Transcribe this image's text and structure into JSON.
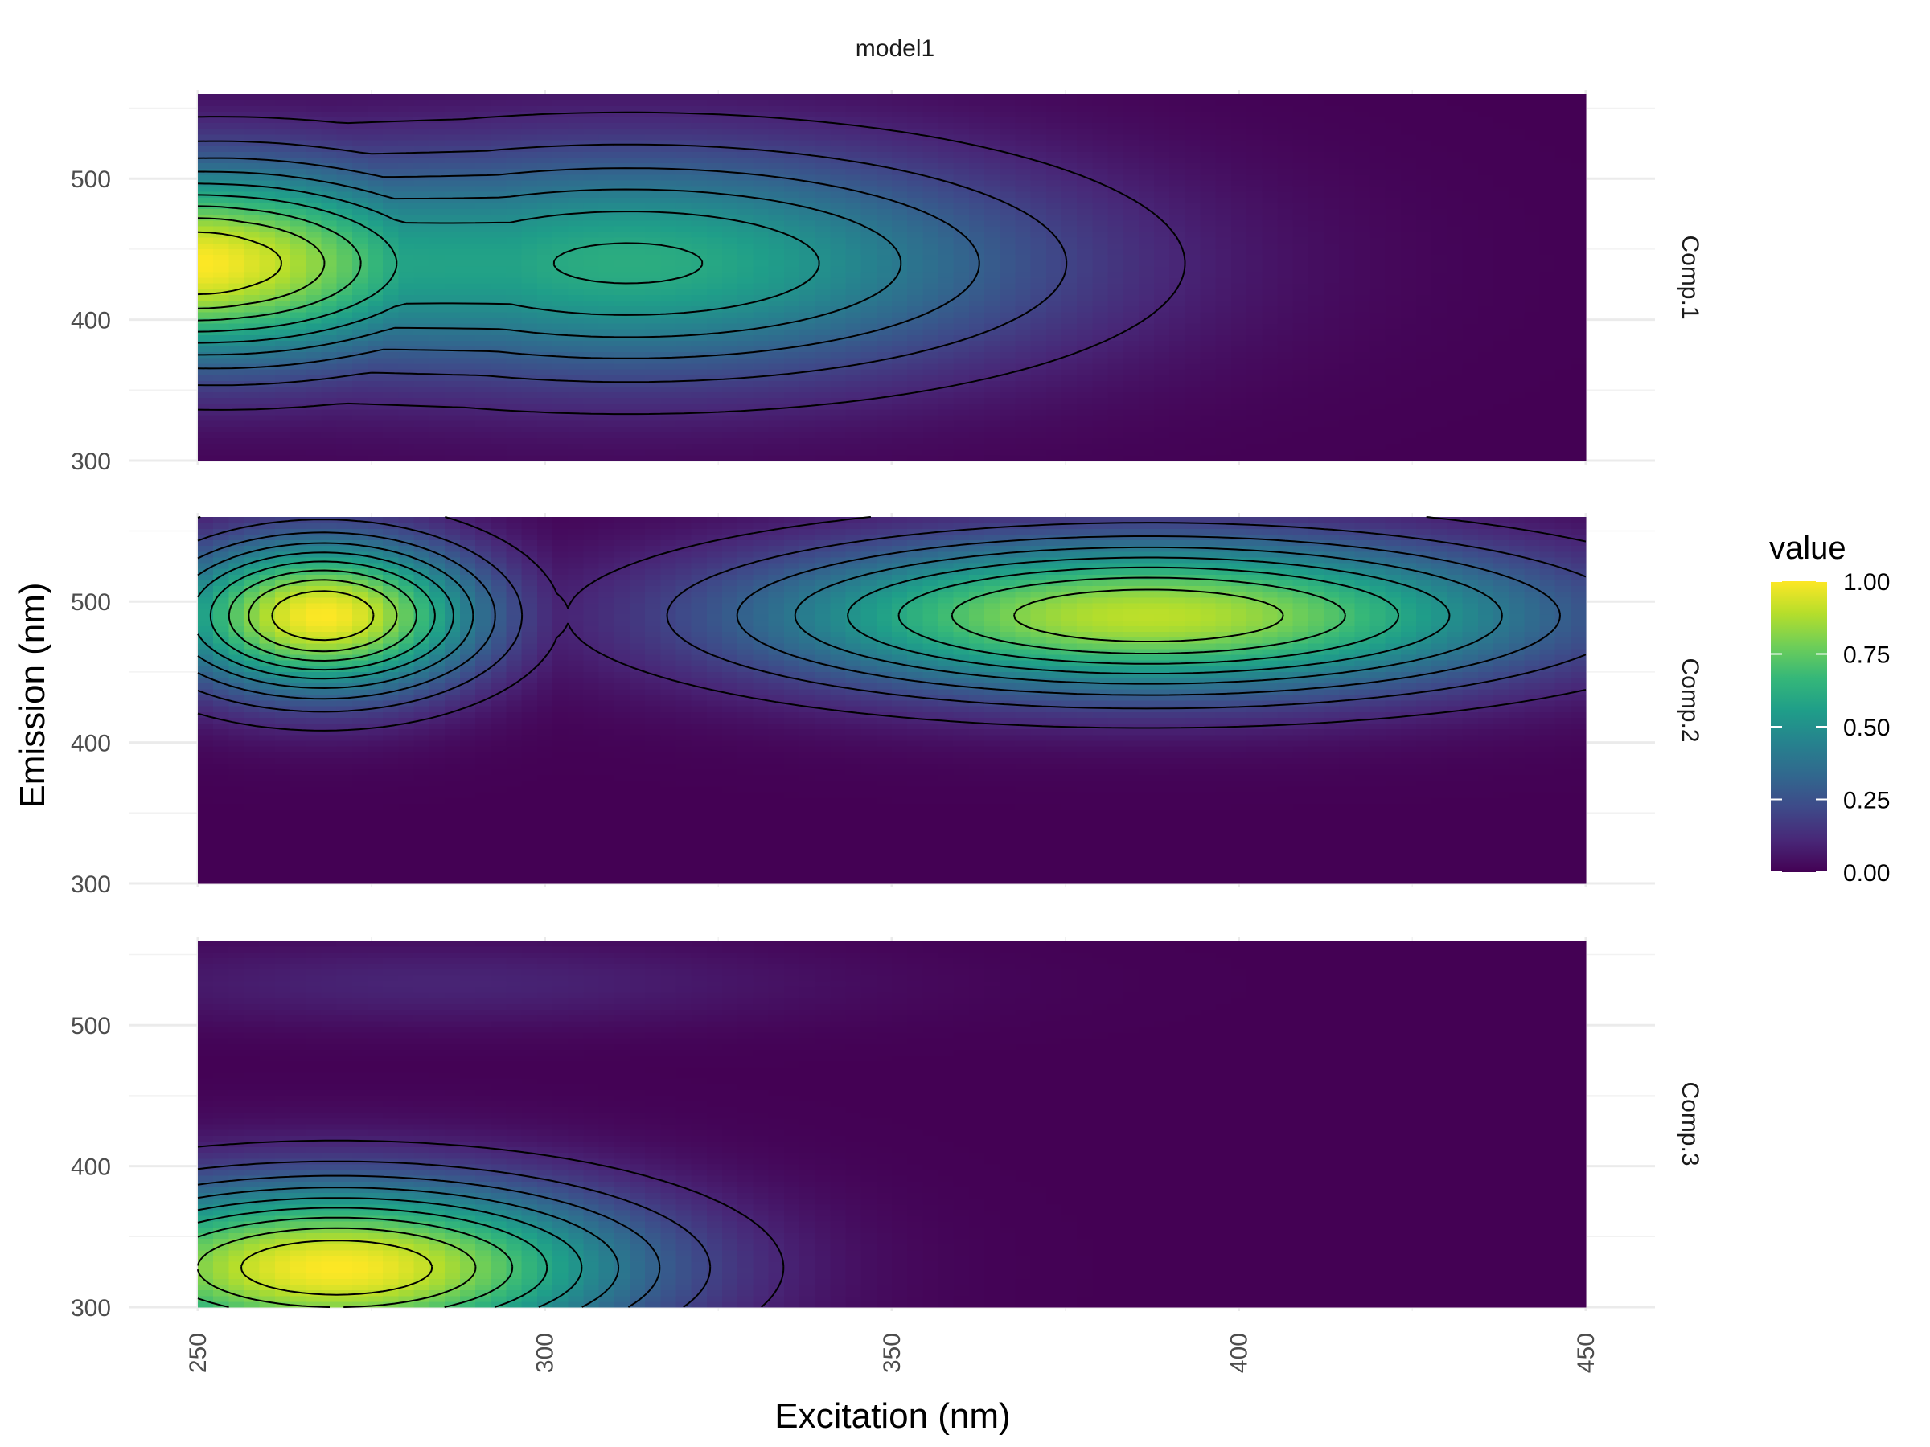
{
  "chart_data": {
    "type": "heatmap",
    "title": "model1",
    "xlabel": "Excitation (nm)",
    "ylabel": "Emission (nm)",
    "xlim": [
      250,
      450
    ],
    "ylim": [
      300,
      560
    ],
    "x_ticks": [
      "250",
      "300",
      "350",
      "400",
      "450"
    ],
    "y_ticks": [
      "300",
      "400",
      "500"
    ],
    "grid": true,
    "contours": true,
    "contour_levels": [
      0.1,
      0.2,
      0.3,
      0.4,
      0.5,
      0.6,
      0.7,
      0.8,
      0.9
    ],
    "facets": [
      {
        "label": "Comp.1",
        "peaks": [
          {
            "ex": 250,
            "em": 440,
            "value": 1.0
          },
          {
            "ex": 312,
            "em": 440,
            "value": 0.62
          }
        ]
      },
      {
        "label": "Comp.2",
        "peaks": [
          {
            "ex": 268,
            "em": 490,
            "value": 1.0
          },
          {
            "ex": 387,
            "em": 490,
            "value": 0.9
          }
        ]
      },
      {
        "label": "Comp.3",
        "peaks": [
          {
            "ex": 270,
            "em": 328,
            "value": 1.0
          },
          {
            "ex": 285,
            "em": 530,
            "value": 0.1
          }
        ]
      }
    ],
    "legend": {
      "title": "value",
      "position": "right",
      "ticks": [
        "1.00",
        "0.75",
        "0.50",
        "0.25",
        "0.00"
      ],
      "palette": [
        "#440154",
        "#482878",
        "#3e4a89",
        "#31688e",
        "#26828e",
        "#1f9e89",
        "#35b779",
        "#6ece58",
        "#b5de2b",
        "#fde725"
      ]
    }
  }
}
